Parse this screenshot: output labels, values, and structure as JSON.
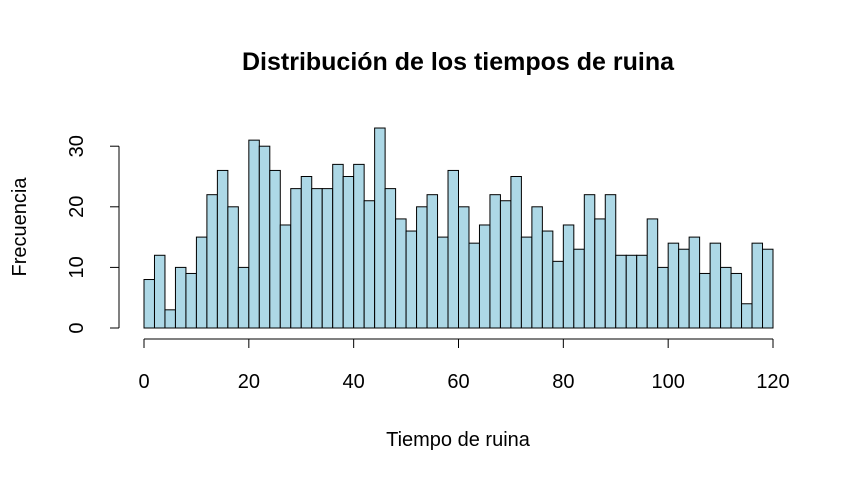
{
  "chart_data": {
    "type": "bar",
    "title": "Distribución de los tiempos de ruina",
    "xlabel": "Tiempo de ruina",
    "ylabel": "Frecuencia",
    "bin_width": 2,
    "xlim": [
      0,
      120
    ],
    "ylim": [
      0,
      33
    ],
    "xticks": [
      0,
      20,
      40,
      60,
      80,
      100,
      120
    ],
    "yticks": [
      0,
      10,
      20,
      30
    ],
    "grid": false,
    "bar_color": "#ADD8E6",
    "values": [
      8,
      12,
      3,
      10,
      9,
      15,
      22,
      26,
      20,
      10,
      31,
      30,
      26,
      17,
      23,
      25,
      23,
      23,
      27,
      25,
      27,
      21,
      33,
      23,
      18,
      16,
      20,
      22,
      15,
      26,
      20,
      14,
      17,
      22,
      21,
      25,
      15,
      20,
      16,
      11,
      17,
      13,
      22,
      18,
      22,
      12,
      12,
      12,
      18,
      10,
      14,
      13,
      15,
      9,
      14,
      10,
      9,
      4,
      14,
      13
    ]
  }
}
